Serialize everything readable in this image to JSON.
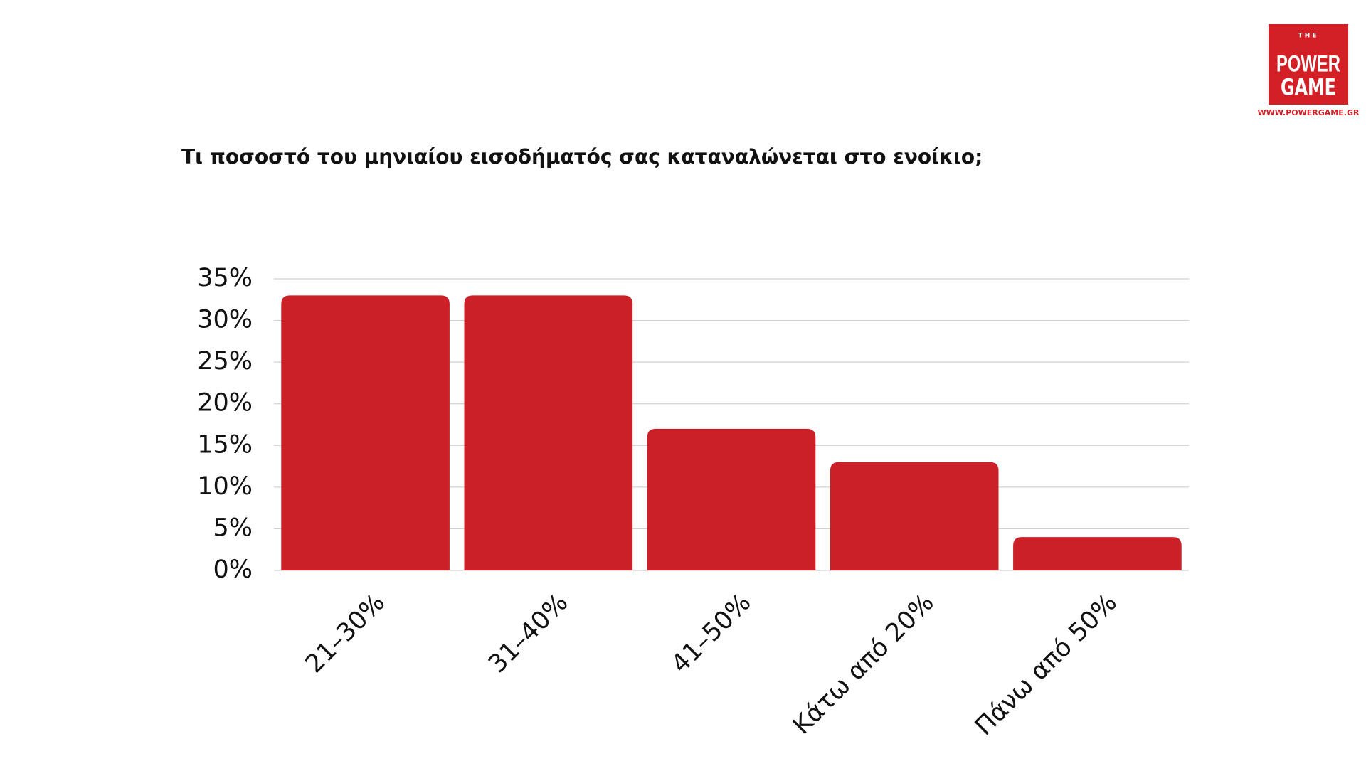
{
  "logo": {
    "top": "THE",
    "line1": "POWER",
    "line2": "GAME",
    "url": "WWW.POWERGAME.GR"
  },
  "chart_data": {
    "type": "bar",
    "title": "Τι ποσοστό του μηνιαίου εισοδήματός σας καταναλώνεται στο ενοίκιο;",
    "categories": [
      "21–30%",
      "31–40%",
      "41–50%",
      "Κάτω από 20%",
      "Πάνω από 50%"
    ],
    "values": [
      33,
      33,
      17,
      13,
      4
    ],
    "color": "#cc2029",
    "ylim": [
      0,
      35
    ],
    "yticks": [
      {
        "value": 0,
        "label": "0%"
      },
      {
        "value": 5,
        "label": "5%"
      },
      {
        "value": 10,
        "label": "10%"
      },
      {
        "value": 15,
        "label": "15%"
      },
      {
        "value": 20,
        "label": "20%"
      },
      {
        "value": 25,
        "label": "25%"
      },
      {
        "value": 30,
        "label": "30%"
      },
      {
        "value": 35,
        "label": "35%"
      }
    ],
    "grid": true
  }
}
